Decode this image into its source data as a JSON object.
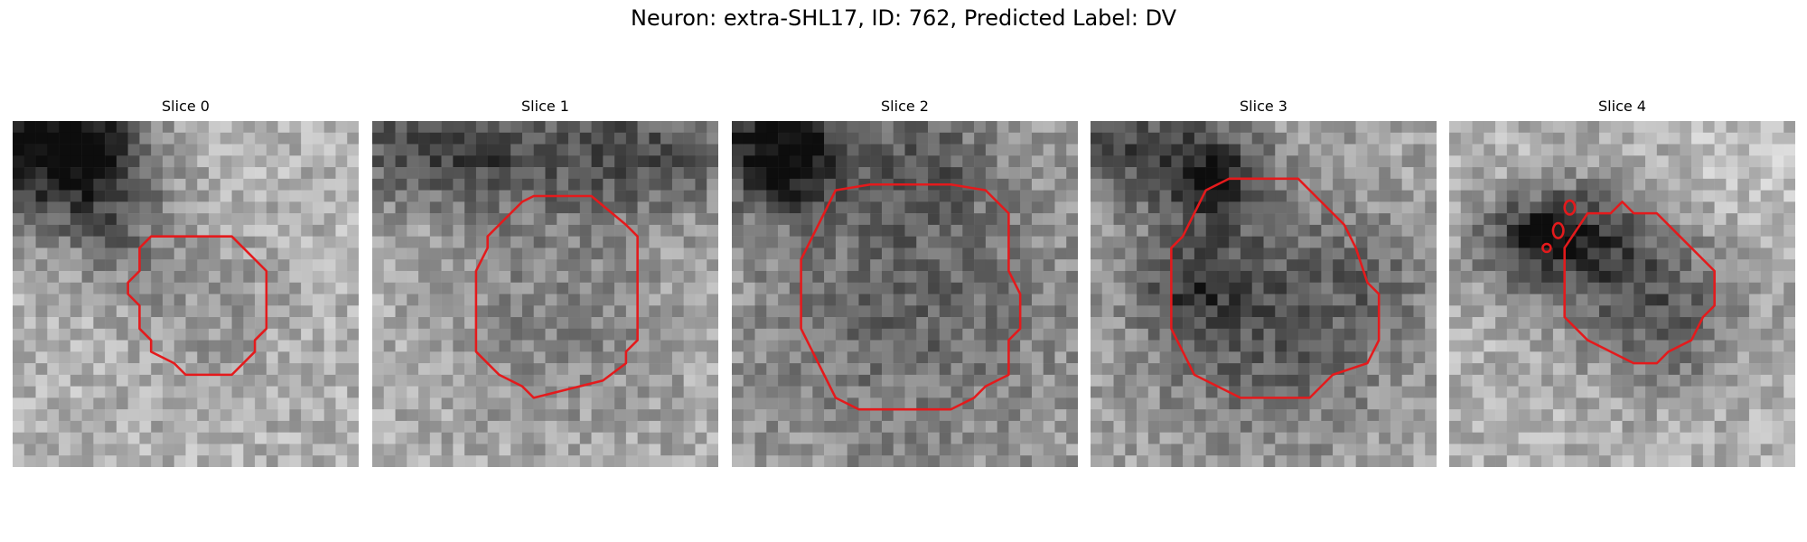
{
  "figure": {
    "title": "Neuron: extra-SHL17, ID: 762, Predicted Label: DV"
  },
  "panels": [
    {
      "title": "Slice 0",
      "image": "grayscale-microscopy-slice",
      "contour_color": "#e41a1c"
    },
    {
      "title": "Slice 1",
      "image": "grayscale-microscopy-slice",
      "contour_color": "#e41a1c"
    },
    {
      "title": "Slice 2",
      "image": "grayscale-microscopy-slice",
      "contour_color": "#e41a1c"
    },
    {
      "title": "Slice 3",
      "image": "grayscale-microscopy-slice",
      "contour_color": "#e41a1c"
    },
    {
      "title": "Slice 4",
      "image": "grayscale-microscopy-slice",
      "contour_color": "#e41a1c"
    }
  ]
}
